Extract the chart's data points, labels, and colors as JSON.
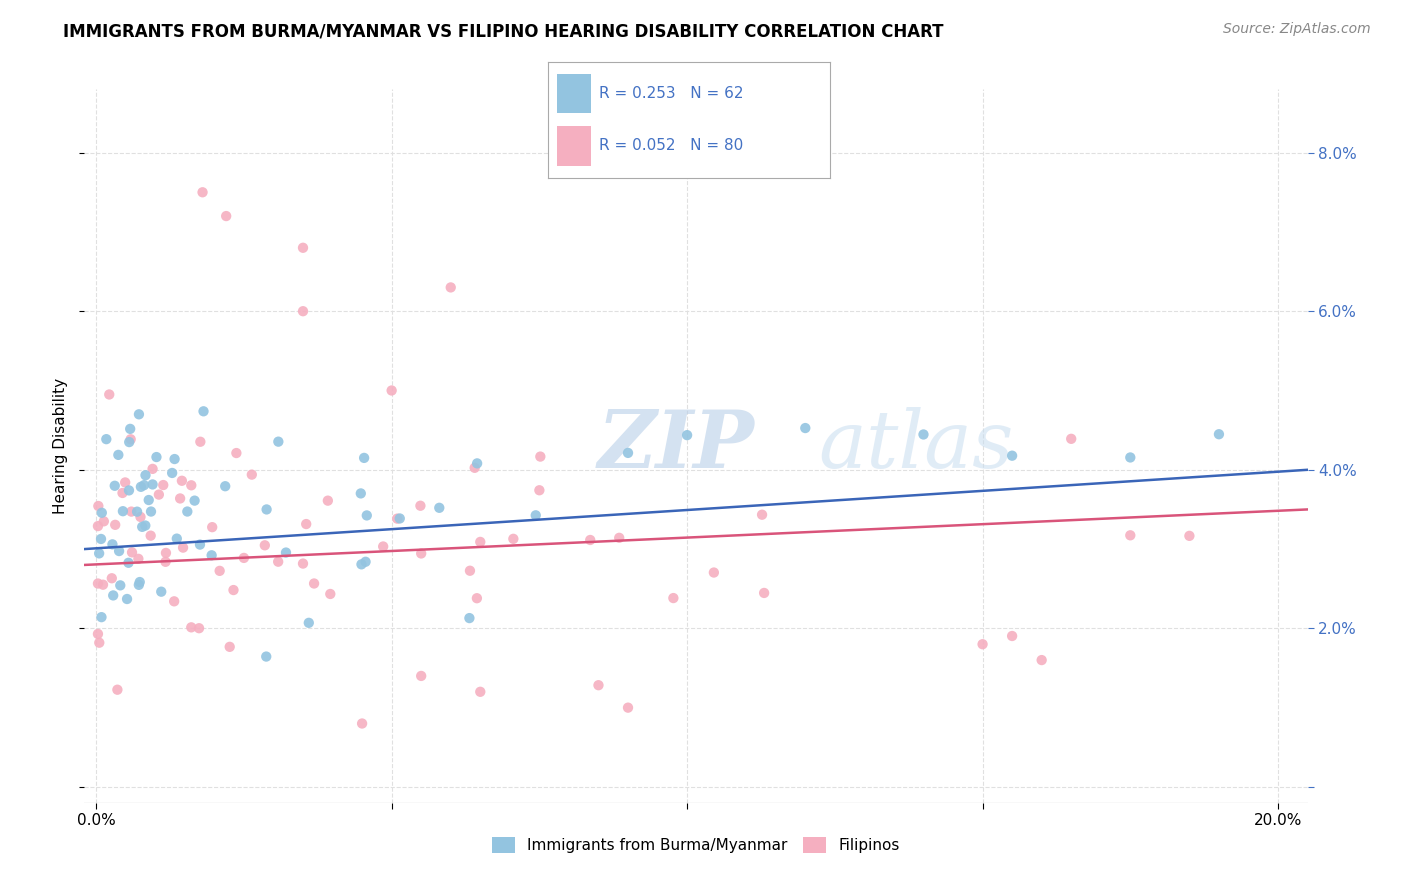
{
  "title": "IMMIGRANTS FROM BURMA/MYANMAR VS FILIPINO HEARING DISABILITY CORRELATION CHART",
  "source": "Source: ZipAtlas.com",
  "ylabel": "Hearing Disability",
  "yticks": [
    0.0,
    0.02,
    0.04,
    0.06,
    0.08
  ],
  "xticks": [
    0.0,
    0.05,
    0.1,
    0.15,
    0.2
  ],
  "xlim": [
    -0.002,
    0.205
  ],
  "ylim": [
    -0.002,
    0.088
  ],
  "series1_label": "Immigrants from Burma/Myanmar",
  "series1_color": "#93c4e0",
  "series1_R": 0.253,
  "series1_N": 62,
  "series2_label": "Filipinos",
  "series2_color": "#f5afc0",
  "series2_R": 0.052,
  "series2_N": 80,
  "line1_color": "#3a65b8",
  "line2_color": "#d9547a",
  "line1_start_y": 0.03,
  "line1_end_y": 0.04,
  "line2_start_y": 0.028,
  "line2_end_y": 0.035,
  "watermark_text": "ZIPatlas",
  "background_color": "#ffffff",
  "grid_color": "#e0e0e0",
  "title_fontsize": 12,
  "source_fontsize": 10,
  "tick_label_color_x": "#000000",
  "tick_label_color_y": "#4472c4",
  "legend_R_N_color": "#4472c4"
}
